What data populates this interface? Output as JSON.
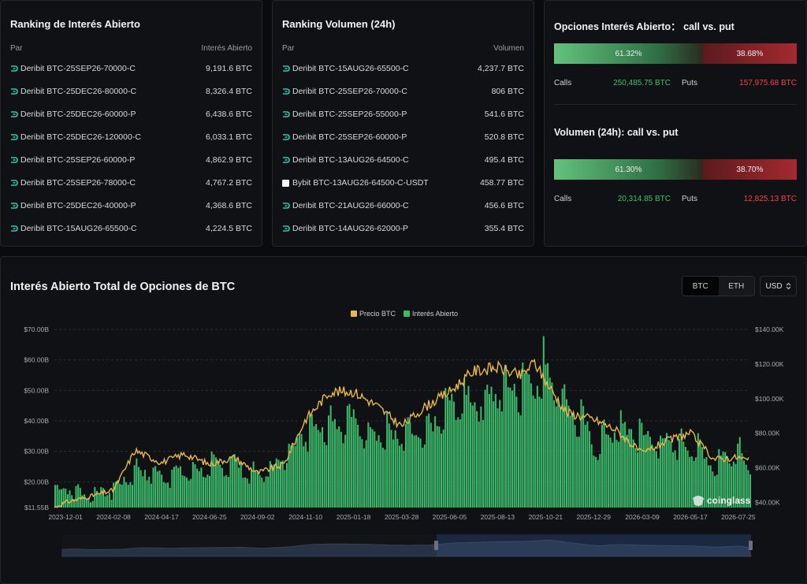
{
  "oi_ranking": {
    "title": "Ranking de Interés Abierto",
    "col_pair": "Par",
    "col_value": "Interés Abierto",
    "rows": [
      {
        "pair": "Deribit BTC-25SEP26-70000-C",
        "value": "9,191.6 BTC"
      },
      {
        "pair": "Deribit BTC-25DEC26-80000-C",
        "value": "8,326.4 BTC"
      },
      {
        "pair": "Deribit BTC-25DEC26-60000-P",
        "value": "6,438.6 BTC"
      },
      {
        "pair": "Deribit BTC-25DEC26-120000-C",
        "value": "6,033.1 BTC"
      },
      {
        "pair": "Deribit BTC-25SEP26-60000-P",
        "value": "4,862.9 BTC"
      },
      {
        "pair": "Deribit BTC-25SEP26-78000-C",
        "value": "4,767.2 BTC"
      },
      {
        "pair": "Deribit BTC-25DEC26-40000-P",
        "value": "4,368.6 BTC"
      },
      {
        "pair": "Deribit BTC-15AUG26-65500-C",
        "value": "4,224.5 BTC"
      }
    ]
  },
  "vol_ranking": {
    "title": "Ranking Volumen (24h)",
    "col_pair": "Par",
    "col_value": "Volumen",
    "rows": [
      {
        "pair": "Deribit BTC-15AUG26-65500-C",
        "value": "4,237.7 BTC",
        "exchange": "deribit"
      },
      {
        "pair": "Deribit BTC-25SEP26-70000-C",
        "value": "806 BTC",
        "exchange": "deribit"
      },
      {
        "pair": "Deribit BTC-25SEP26-55000-P",
        "value": "541.6 BTC",
        "exchange": "deribit"
      },
      {
        "pair": "Deribit BTC-25SEP26-60000-P",
        "value": "520.8 BTC",
        "exchange": "deribit"
      },
      {
        "pair": "Deribit BTC-13AUG26-64500-C",
        "value": "495.4 BTC",
        "exchange": "deribit"
      },
      {
        "pair": "Bybit BTC-13AUG26-64500-C-USDT",
        "value": "458.77 BTC",
        "exchange": "bybit"
      },
      {
        "pair": "Deribit BTC-21AUG26-66000-C",
        "value": "456.6 BTC",
        "exchange": "deribit"
      },
      {
        "pair": "Deribit BTC-14AUG26-62000-P",
        "value": "355.4 BTC",
        "exchange": "deribit"
      }
    ]
  },
  "call_put": {
    "oi_title": "Opciones Interés Abierto： call vs. put",
    "oi_calls_pct": "61.32%",
    "oi_calls_frac": 0.6132,
    "oi_puts_pct": "38.68%",
    "oi_calls_label": "Calls",
    "oi_calls_value": "250,485.75 BTC",
    "oi_puts_label": "Puts",
    "oi_puts_value": "157,975.68 BTC",
    "vol_title": "Volumen (24h): call vs. put",
    "vol_calls_pct": "61.30%",
    "vol_calls_frac": 0.613,
    "vol_puts_pct": "38.70%",
    "vol_calls_label": "Calls",
    "vol_calls_value": "20,314.85 BTC",
    "vol_puts_label": "Puts",
    "vol_puts_value": "12,825.13 BTC"
  },
  "chart_header": {
    "title": "Interés Abierto Total de Opciones de BTC",
    "toggle_btc": "BTC",
    "toggle_eth": "ETH",
    "currency": "USD",
    "watermark": "coinglass"
  },
  "colors": {
    "oi_bar": "#3cb96a",
    "price_line": "#e8b84a",
    "calls": "#3fbf72",
    "puts": "#f0454b"
  },
  "chart_data": {
    "type": "bar",
    "title": "Interés Abierto Total de Opciones de BTC",
    "legend": [
      "Precio BTC",
      "Interés Abierto"
    ],
    "legend_position": "top-center",
    "x_tick_labels": [
      "2023-12-01",
      "2024-02-08",
      "2024-04-17",
      "2024-06-25",
      "2024-09-02",
      "2024-11-10",
      "2025-01-18",
      "2025-03-28",
      "2025-06-05",
      "2025-08-13",
      "2025-10-21",
      "2025-12-29",
      "2026-03-09",
      "2026-05-17",
      "2026-07-25"
    ],
    "y_left_ticks": [
      "$11.55B",
      "$20.00B",
      "$30.00B",
      "$40.00B",
      "$50.00B",
      "$60.00B",
      "$70.00B"
    ],
    "y_left_range": [
      11.55,
      70
    ],
    "y_right_ticks": [
      "$40.00K",
      "$60.00K",
      "$80.00K",
      "$100.00K",
      "$120.00K",
      "$140.00K"
    ],
    "y_right_range": [
      37,
      140
    ],
    "grid": true,
    "series": [
      {
        "name": "Interés Abierto",
        "axis": "left",
        "unit": "USD billions",
        "x": [
          "2023-11-15",
          "2023-12-01",
          "2024-01-01",
          "2024-02-08",
          "2024-03-10",
          "2024-04-17",
          "2024-05-20",
          "2024-06-25",
          "2024-07-30",
          "2024-09-02",
          "2024-10-10",
          "2024-11-10",
          "2024-12-15",
          "2025-01-18",
          "2025-02-20",
          "2025-03-28",
          "2025-04-30",
          "2025-06-05",
          "2025-07-10",
          "2025-08-13",
          "2025-09-15",
          "2025-10-05",
          "2025-10-21",
          "2025-11-20",
          "2025-12-29",
          "2026-01-30",
          "2026-03-09",
          "2026-04-10",
          "2026-05-17",
          "2026-06-20",
          "2026-07-25",
          "2026-08-10"
        ],
        "values": [
          19,
          21,
          18,
          20,
          28,
          25,
          27,
          28,
          30,
          25,
          32,
          44,
          46,
          45,
          42,
          39,
          41,
          51,
          54,
          57,
          59,
          62,
          66,
          52,
          37,
          43,
          40,
          38,
          36,
          30,
          36,
          27
        ]
      },
      {
        "name": "Precio BTC",
        "axis": "right",
        "unit": "USD thousands",
        "x": [
          "2023-11-15",
          "2023-12-01",
          "2024-01-01",
          "2024-02-08",
          "2024-03-10",
          "2024-04-17",
          "2024-05-20",
          "2024-06-25",
          "2024-07-30",
          "2024-09-02",
          "2024-10-10",
          "2024-11-10",
          "2024-12-15",
          "2025-01-18",
          "2025-02-20",
          "2025-03-28",
          "2025-04-30",
          "2025-06-05",
          "2025-07-10",
          "2025-08-13",
          "2025-09-15",
          "2025-10-05",
          "2025-10-21",
          "2025-11-20",
          "2025-12-29",
          "2026-01-30",
          "2026-03-09",
          "2026-04-10",
          "2026-05-17",
          "2026-06-20",
          "2026-07-25",
          "2026-08-10"
        ],
        "values": [
          37,
          40,
          43,
          47,
          70,
          63,
          68,
          62,
          66,
          57,
          62,
          88,
          104,
          104,
          96,
          84,
          95,
          104,
          116,
          118,
          113,
          121,
          110,
          92,
          88,
          82,
          68,
          75,
          80,
          65,
          66,
          64
        ]
      }
    ]
  }
}
